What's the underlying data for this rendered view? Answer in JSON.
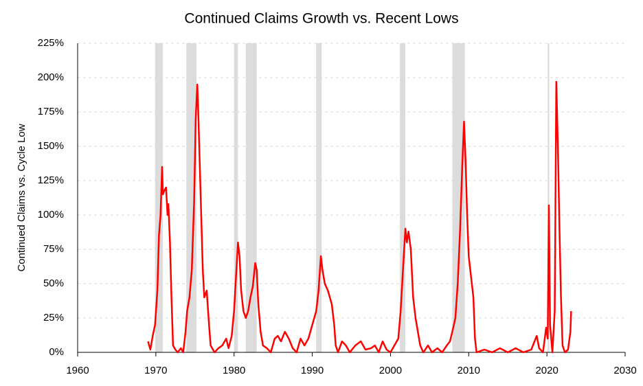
{
  "chart_data": {
    "type": "line",
    "title": "Continued Claims Growth vs. Recent Lows",
    "y_label": "Continued Claims vs. Cycle Low",
    "xlim": [
      1960,
      2030
    ],
    "xticks": [
      1960,
      1970,
      1980,
      1990,
      2000,
      2010,
      2020,
      2030
    ],
    "ylim": [
      0,
      225
    ],
    "yticks": [
      {
        "value": 0,
        "label": "0%"
      },
      {
        "value": 25,
        "label": "25%"
      },
      {
        "value": 50,
        "label": "50%"
      },
      {
        "value": 75,
        "label": "75%"
      },
      {
        "value": 100,
        "label": "100%"
      },
      {
        "value": 125,
        "label": "125%"
      },
      {
        "value": 150,
        "label": "150%"
      },
      {
        "value": 175,
        "label": "175%"
      },
      {
        "value": 200,
        "label": "200%"
      },
      {
        "value": 225,
        "label": "225%"
      }
    ],
    "grid": true,
    "recession_color": "#dcdcdc",
    "recessions": [
      {
        "start": 1969.9,
        "end": 1970.9
      },
      {
        "start": 1973.9,
        "end": 1975.2
      },
      {
        "start": 1980.0,
        "end": 1980.5
      },
      {
        "start": 1981.5,
        "end": 1982.9
      },
      {
        "start": 1990.5,
        "end": 1991.2
      },
      {
        "start": 2001.2,
        "end": 2001.9
      },
      {
        "start": 2007.9,
        "end": 2009.5
      },
      {
        "start": 2020.1,
        "end": 2020.3
      }
    ],
    "series": [
      {
        "name": "Continued Claims vs. Cycle Low",
        "color": "#ff0000",
        "x": [
          1969.0,
          1969.3,
          1969.6,
          1969.9,
          1970.2,
          1970.4,
          1970.6,
          1970.8,
          1970.9,
          1971.1,
          1971.3,
          1971.5,
          1971.6,
          1971.8,
          1972.0,
          1972.2,
          1972.5,
          1972.8,
          1973.2,
          1973.5,
          1973.8,
          1974.0,
          1974.3,
          1974.6,
          1974.9,
          1975.1,
          1975.3,
          1975.4,
          1975.6,
          1975.8,
          1976.0,
          1976.2,
          1976.5,
          1976.8,
          1977.0,
          1977.5,
          1978.0,
          1978.5,
          1979.0,
          1979.3,
          1979.7,
          1980.0,
          1980.3,
          1980.5,
          1980.7,
          1980.9,
          1981.2,
          1981.5,
          1981.8,
          1982.1,
          1982.4,
          1982.7,
          1982.9,
          1983.1,
          1983.4,
          1983.7,
          1984.2,
          1984.7,
          1985.2,
          1985.6,
          1986.0,
          1986.5,
          1987.0,
          1987.5,
          1988.0,
          1988.5,
          1989.0,
          1989.5,
          1990.0,
          1990.5,
          1990.8,
          1991.1,
          1991.3,
          1991.6,
          1992.0,
          1992.5,
          1992.8,
          1993.0,
          1993.3,
          1993.8,
          1994.3,
          1994.8,
          1995.5,
          1996.2,
          1996.8,
          1997.5,
          1998.0,
          1998.5,
          1999.0,
          1999.5,
          2000.0,
          2000.5,
          2001.0,
          2001.3,
          2001.6,
          2001.9,
          2002.1,
          2002.3,
          2002.6,
          2002.9,
          2003.2,
          2003.5,
          2003.8,
          2004.2,
          2004.8,
          2005.3,
          2006.0,
          2006.6,
          2007.2,
          2007.6,
          2007.9,
          2008.3,
          2008.6,
          2008.9,
          2009.2,
          2009.4,
          2009.6,
          2009.8,
          2010.0,
          2010.3,
          2010.6,
          2010.8,
          2011.0,
          2012.0,
          2013.0,
          2014.0,
          2015.0,
          2016.0,
          2017.0,
          2018.0,
          2018.7,
          2019.0,
          2019.5,
          2019.9,
          2020.1,
          2020.25,
          2020.4,
          2020.7,
          2021.0,
          2021.2,
          2021.4,
          2021.6,
          2021.8,
          2022.0,
          2022.3,
          2022.7,
          2023.0,
          2023.1
        ],
        "values": [
          8,
          2,
          12,
          20,
          45,
          85,
          100,
          135,
          115,
          118,
          120,
          100,
          108,
          80,
          40,
          5,
          2,
          0,
          3,
          0,
          15,
          30,
          40,
          60,
          110,
          170,
          195,
          180,
          140,
          100,
          60,
          40,
          45,
          20,
          5,
          0,
          3,
          5,
          10,
          3,
          12,
          30,
          60,
          80,
          70,
          45,
          30,
          25,
          30,
          40,
          48,
          65,
          60,
          35,
          15,
          5,
          3,
          0,
          10,
          12,
          8,
          15,
          10,
          3,
          0,
          10,
          5,
          10,
          20,
          30,
          45,
          70,
          60,
          50,
          45,
          35,
          20,
          5,
          0,
          8,
          5,
          0,
          5,
          8,
          2,
          3,
          5,
          0,
          8,
          2,
          0,
          5,
          10,
          30,
          60,
          90,
          80,
          88,
          75,
          40,
          25,
          15,
          5,
          0,
          5,
          0,
          3,
          0,
          5,
          8,
          15,
          25,
          50,
          90,
          140,
          168,
          140,
          100,
          70,
          55,
          40,
          10,
          0,
          2,
          0,
          3,
          0,
          3,
          0,
          2,
          12,
          3,
          0,
          18,
          10,
          107,
          20,
          0,
          30,
          197,
          150,
          90,
          40,
          5,
          0,
          2,
          15,
          30
        ]
      }
    ]
  }
}
